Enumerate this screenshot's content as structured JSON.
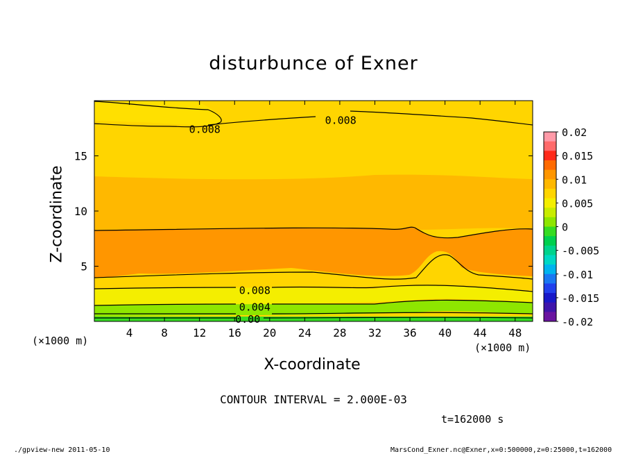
{
  "chart_data": {
    "type": "contour",
    "title": "disturbunce of Exner",
    "xlabel": "X-coordinate",
    "ylabel": "Z-coordinate",
    "x_unit_left": "(×1000 m)",
    "x_unit_right": "(×1000 m)",
    "xlim": [
      0,
      50
    ],
    "ylim": [
      0,
      20
    ],
    "x_ticks": [
      4,
      8,
      12,
      16,
      20,
      24,
      28,
      32,
      36,
      40,
      44,
      48
    ],
    "y_ticks": [
      5,
      10,
      15
    ],
    "contour_labels": [
      {
        "text": "0.008",
        "x": 12.6,
        "z": 17.4
      },
      {
        "text": "0.008",
        "x": 28.1,
        "z": 18.2
      },
      {
        "text": "0.008",
        "x": 18.3,
        "z": 2.8
      },
      {
        "text": "0.004",
        "x": 18.3,
        "z": 1.3
      },
      {
        "text": "0.00",
        "x": 17.5,
        "z": 0.2
      }
    ],
    "colorbar": {
      "levels": [
        "0.02",
        "0.015",
        "0.01",
        "0.005",
        "0",
        "-0.005",
        "-0.01",
        "-0.015",
        "-0.02"
      ],
      "colors": [
        "#ff9aa8",
        "#ff6a6a",
        "#ff2a1a",
        "#ff6a00",
        "#ff9600",
        "#ffb800",
        "#ffd500",
        "#f4ee00",
        "#c8ec00",
        "#8ee600",
        "#36dc22",
        "#00d04e",
        "#00d38c",
        "#00d8c4",
        "#00b4ee",
        "#1a78f2",
        "#2140ec",
        "#1818c8",
        "#3e14aa",
        "#6a14a0"
      ]
    },
    "contour_interval": "CONTOUR INTERVAL = 2.000E-03",
    "time": "t=162000 s"
  },
  "footer": {
    "left": "./gpview-new  2011-05-10",
    "right": "MarsCond_Exner.nc@Exner,x=0:500000,z=0:25000,t=162000"
  },
  "colors": {
    "level_0008": "#ffd500",
    "level_0010": "#ff9600",
    "level_0012": "#ffb800",
    "level_0006": "#ffd500",
    "level_0004": "#f4ee00",
    "level_0002": "#8ee600",
    "level_0000": "#36dc22"
  }
}
